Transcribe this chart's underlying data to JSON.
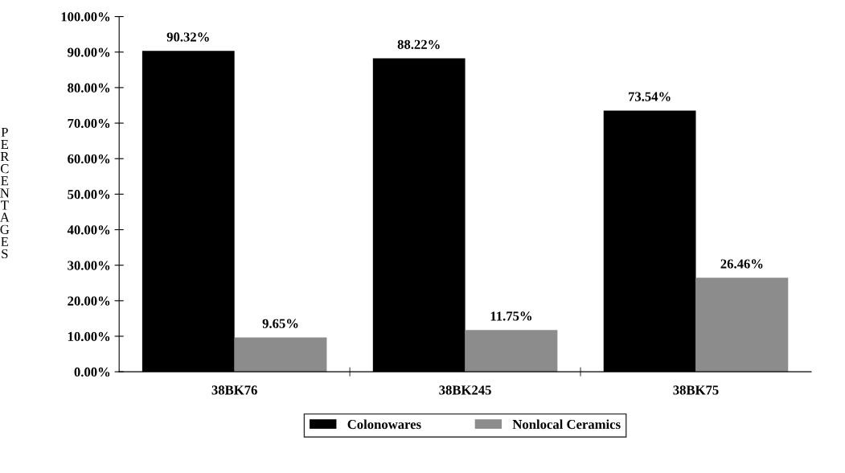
{
  "chart_data": {
    "type": "bar",
    "ylabel": "PERCENTAGES",
    "categories": [
      "38BK76",
      "38BK245",
      "38BK75"
    ],
    "series": [
      {
        "name": "Colonowares",
        "color": "#000000",
        "values": [
          90.32,
          88.22,
          73.54
        ],
        "value_labels": [
          "90.32%",
          "88.22%",
          "73.54%"
        ]
      },
      {
        "name": "Nonlocal Ceramics",
        "color": "#8c8c8c",
        "values": [
          9.65,
          11.75,
          26.46
        ],
        "value_labels": [
          "9.65%",
          "11.75%",
          "26.46%"
        ]
      }
    ],
    "ylim": [
      0,
      100
    ],
    "yticks": [
      {
        "value": 0,
        "label": "0.00%"
      },
      {
        "value": 10,
        "label": "10.00%"
      },
      {
        "value": 20,
        "label": "20.00%"
      },
      {
        "value": 30,
        "label": "30.00%"
      },
      {
        "value": 40,
        "label": "40.00%"
      },
      {
        "value": 50,
        "label": "50.00%"
      },
      {
        "value": 60,
        "label": "60.00%"
      },
      {
        "value": 70,
        "label": "70.00%"
      },
      {
        "value": 80,
        "label": "80.00%"
      },
      {
        "value": 90,
        "label": "90.00%"
      },
      {
        "value": 100,
        "label": "100.00%"
      }
    ],
    "grid": false,
    "legend": "bottom"
  }
}
